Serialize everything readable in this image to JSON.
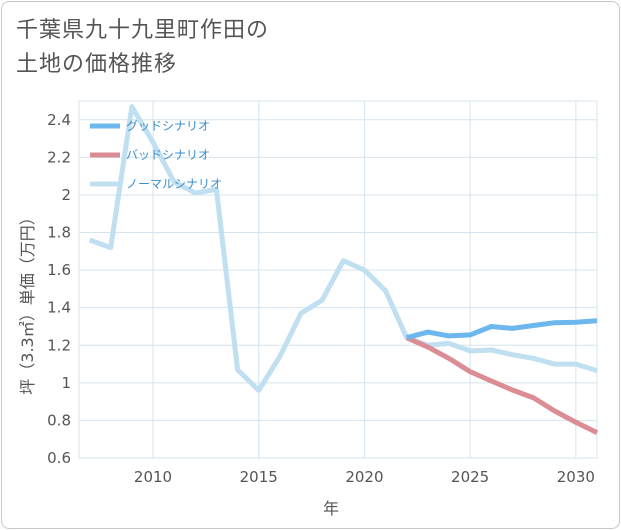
{
  "title": "千葉県九十九里町作田の\n土地の価格推移",
  "chart_data": {
    "type": "line",
    "xlabel": "年",
    "ylabel": "坪（3.3㎡）単価（万円）",
    "xlim": [
      2006.5,
      2031
    ],
    "ylim": [
      0.6,
      2.5
    ],
    "xticks": [
      2010,
      2015,
      2020,
      2025,
      2030
    ],
    "yticks": [
      0.6,
      0.8,
      1,
      1.2,
      1.4,
      1.6,
      1.8,
      2,
      2.2,
      2.4
    ],
    "ytick_labels": [
      "0.6",
      "0.8",
      "1",
      "1.2",
      "1.4",
      "1.6",
      "1.8",
      "2",
      "2.2",
      "2.4"
    ],
    "grid": true,
    "legend_position": "top-left",
    "series": [
      {
        "name": "グッドシナリオ",
        "color": "#6cb8ee",
        "points": [
          [
            2022,
            1.24
          ],
          [
            2023,
            1.27
          ],
          [
            2024,
            1.25
          ],
          [
            2025,
            1.255
          ],
          [
            2026,
            1.3
          ],
          [
            2027,
            1.29
          ],
          [
            2028,
            1.305
          ],
          [
            2029,
            1.32
          ],
          [
            2030,
            1.323
          ],
          [
            2031,
            1.33
          ]
        ]
      },
      {
        "name": "バッドシナリオ",
        "color": "#dc8c94",
        "points": [
          [
            2022,
            1.24
          ],
          [
            2023,
            1.19
          ],
          [
            2024,
            1.13
          ],
          [
            2025,
            1.06
          ],
          [
            2026,
            1.01
          ],
          [
            2027,
            0.962
          ],
          [
            2028,
            0.92
          ],
          [
            2029,
            0.85
          ],
          [
            2030,
            0.79
          ],
          [
            2031,
            0.735
          ]
        ]
      },
      {
        "name": "ノーマルシナリオ",
        "color": "#c0dff0",
        "points": [
          [
            2007,
            1.76
          ],
          [
            2008,
            1.72
          ],
          [
            2009,
            2.47
          ],
          [
            2010,
            2.28
          ],
          [
            2011,
            2.07
          ],
          [
            2012,
            2.01
          ],
          [
            2013,
            2.03
          ],
          [
            2014,
            1.07
          ],
          [
            2015,
            0.96
          ],
          [
            2016,
            1.14
          ],
          [
            2017,
            1.37
          ],
          [
            2018,
            1.44
          ],
          [
            2019,
            1.65
          ],
          [
            2020,
            1.6
          ],
          [
            2021,
            1.49
          ],
          [
            2022,
            1.24
          ],
          [
            2023,
            1.2
          ],
          [
            2024,
            1.21
          ],
          [
            2025,
            1.17
          ],
          [
            2026,
            1.175
          ],
          [
            2027,
            1.15
          ],
          [
            2028,
            1.13
          ],
          [
            2029,
            1.1
          ],
          [
            2030,
            1.1
          ],
          [
            2031,
            1.065
          ]
        ]
      }
    ]
  }
}
